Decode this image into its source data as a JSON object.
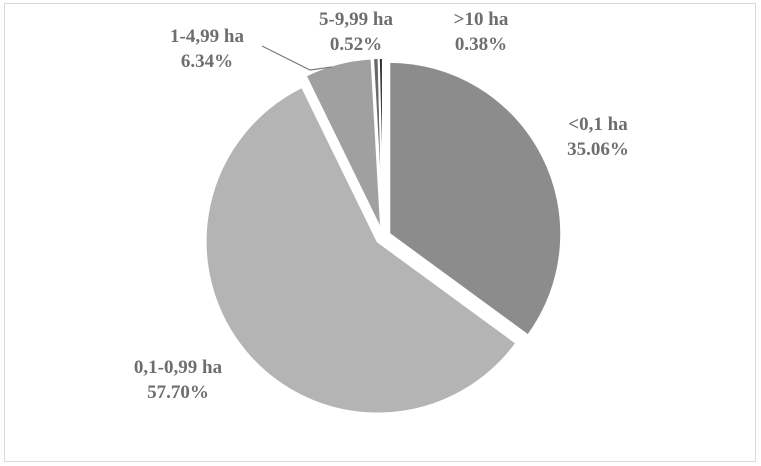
{
  "chart_data": {
    "type": "pie",
    "title": "",
    "categories": [
      "<0,1 ha",
      "0,1-0,99 ha",
      "1-4,99 ha",
      "5-9,99 ha",
      ">10 ha"
    ],
    "values": [
      35.06,
      57.7,
      6.34,
      0.52,
      0.38
    ],
    "value_labels": [
      "35.06%",
      "57.70%",
      "6.34%",
      "0.52%",
      "0.38%"
    ],
    "colors": [
      "#8c8c8c",
      "#b4b4b4",
      "#a0a0a0",
      "#6a6a6a",
      "#2f2f2f"
    ],
    "exploded": true,
    "start_angle": "12 o'clock, clockwise",
    "legend": "none",
    "grid": false
  }
}
